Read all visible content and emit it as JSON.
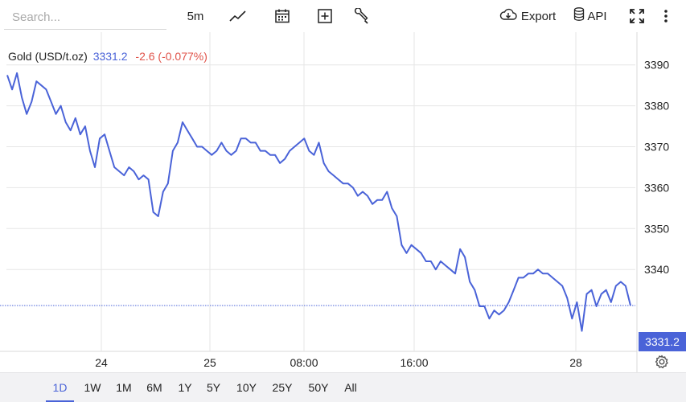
{
  "toolbar": {
    "search_placeholder": "Search...",
    "interval": "5m",
    "export_label": "Export",
    "api_label": "API",
    "icons": [
      "line-chart-icon",
      "calendar-icon",
      "add-indicator-icon",
      "wrench-icon",
      "cloud-download-icon",
      "database-icon",
      "fullscreen-icon",
      "more-vertical-icon"
    ]
  },
  "legend": {
    "name": "Gold (USD/t.oz)",
    "price": "3331.2",
    "change": "-2.6 (-0.077%)"
  },
  "colors": {
    "line": "#4a63d8",
    "change_negative": "#e0534a",
    "grid": "#e6e6e6"
  },
  "chart_data": {
    "type": "line",
    "title": "Gold (USD/t.oz)",
    "x_labels": [
      "24",
      "25",
      "08:00",
      "16:00",
      "28"
    ],
    "y_ticks": [
      3340,
      3350,
      3360,
      3370,
      3380,
      3390
    ],
    "ylim": [
      3320,
      3398
    ],
    "last_value": 3331.2,
    "last_value_label": "3331.2",
    "grid": true,
    "series": [
      {
        "values": [
          3387.5,
          3384,
          3388,
          3382,
          3378,
          3381,
          3386,
          3385,
          3384,
          3381,
          3378,
          3380,
          3376,
          3374,
          3377,
          3373,
          3375,
          3369,
          3365,
          3372,
          3373,
          3369,
          3365,
          3364,
          3363,
          3365,
          3364,
          3362,
          3363,
          3362,
          3354,
          3353,
          3359,
          3361,
          3369,
          3371,
          3376,
          3374,
          3372,
          3370,
          3370,
          3369,
          3368,
          3369,
          3371,
          3369,
          3368,
          3369,
          3372,
          3372,
          3371,
          3371,
          3369,
          3369,
          3368,
          3368,
          3366,
          3367,
          3369,
          3370,
          3371,
          3372,
          3369,
          3368,
          3371,
          3366,
          3364,
          3363,
          3362,
          3361,
          3361,
          3360,
          3358,
          3359,
          3358,
          3356,
          3357,
          3357,
          3359,
          3355,
          3353,
          3346,
          3344,
          3346,
          3345,
          3344,
          3342,
          3342,
          3340,
          3342,
          3341,
          3340,
          3339,
          3345,
          3343,
          3337,
          3335,
          3331,
          3331,
          3328,
          3330,
          3329,
          3330,
          3332,
          3335,
          3338,
          3338,
          3339,
          3339,
          3340,
          3339,
          3339,
          3338,
          3337,
          3336,
          3333,
          3328,
          3332,
          3325,
          3334,
          3335,
          3331,
          3334,
          3335,
          3332,
          3336,
          3337,
          3336,
          3331.2
        ]
      }
    ]
  },
  "ranges": [
    "1D",
    "1W",
    "1M",
    "6M",
    "1Y",
    "5Y",
    "10Y",
    "25Y",
    "50Y",
    "All"
  ],
  "active_range": "1D"
}
